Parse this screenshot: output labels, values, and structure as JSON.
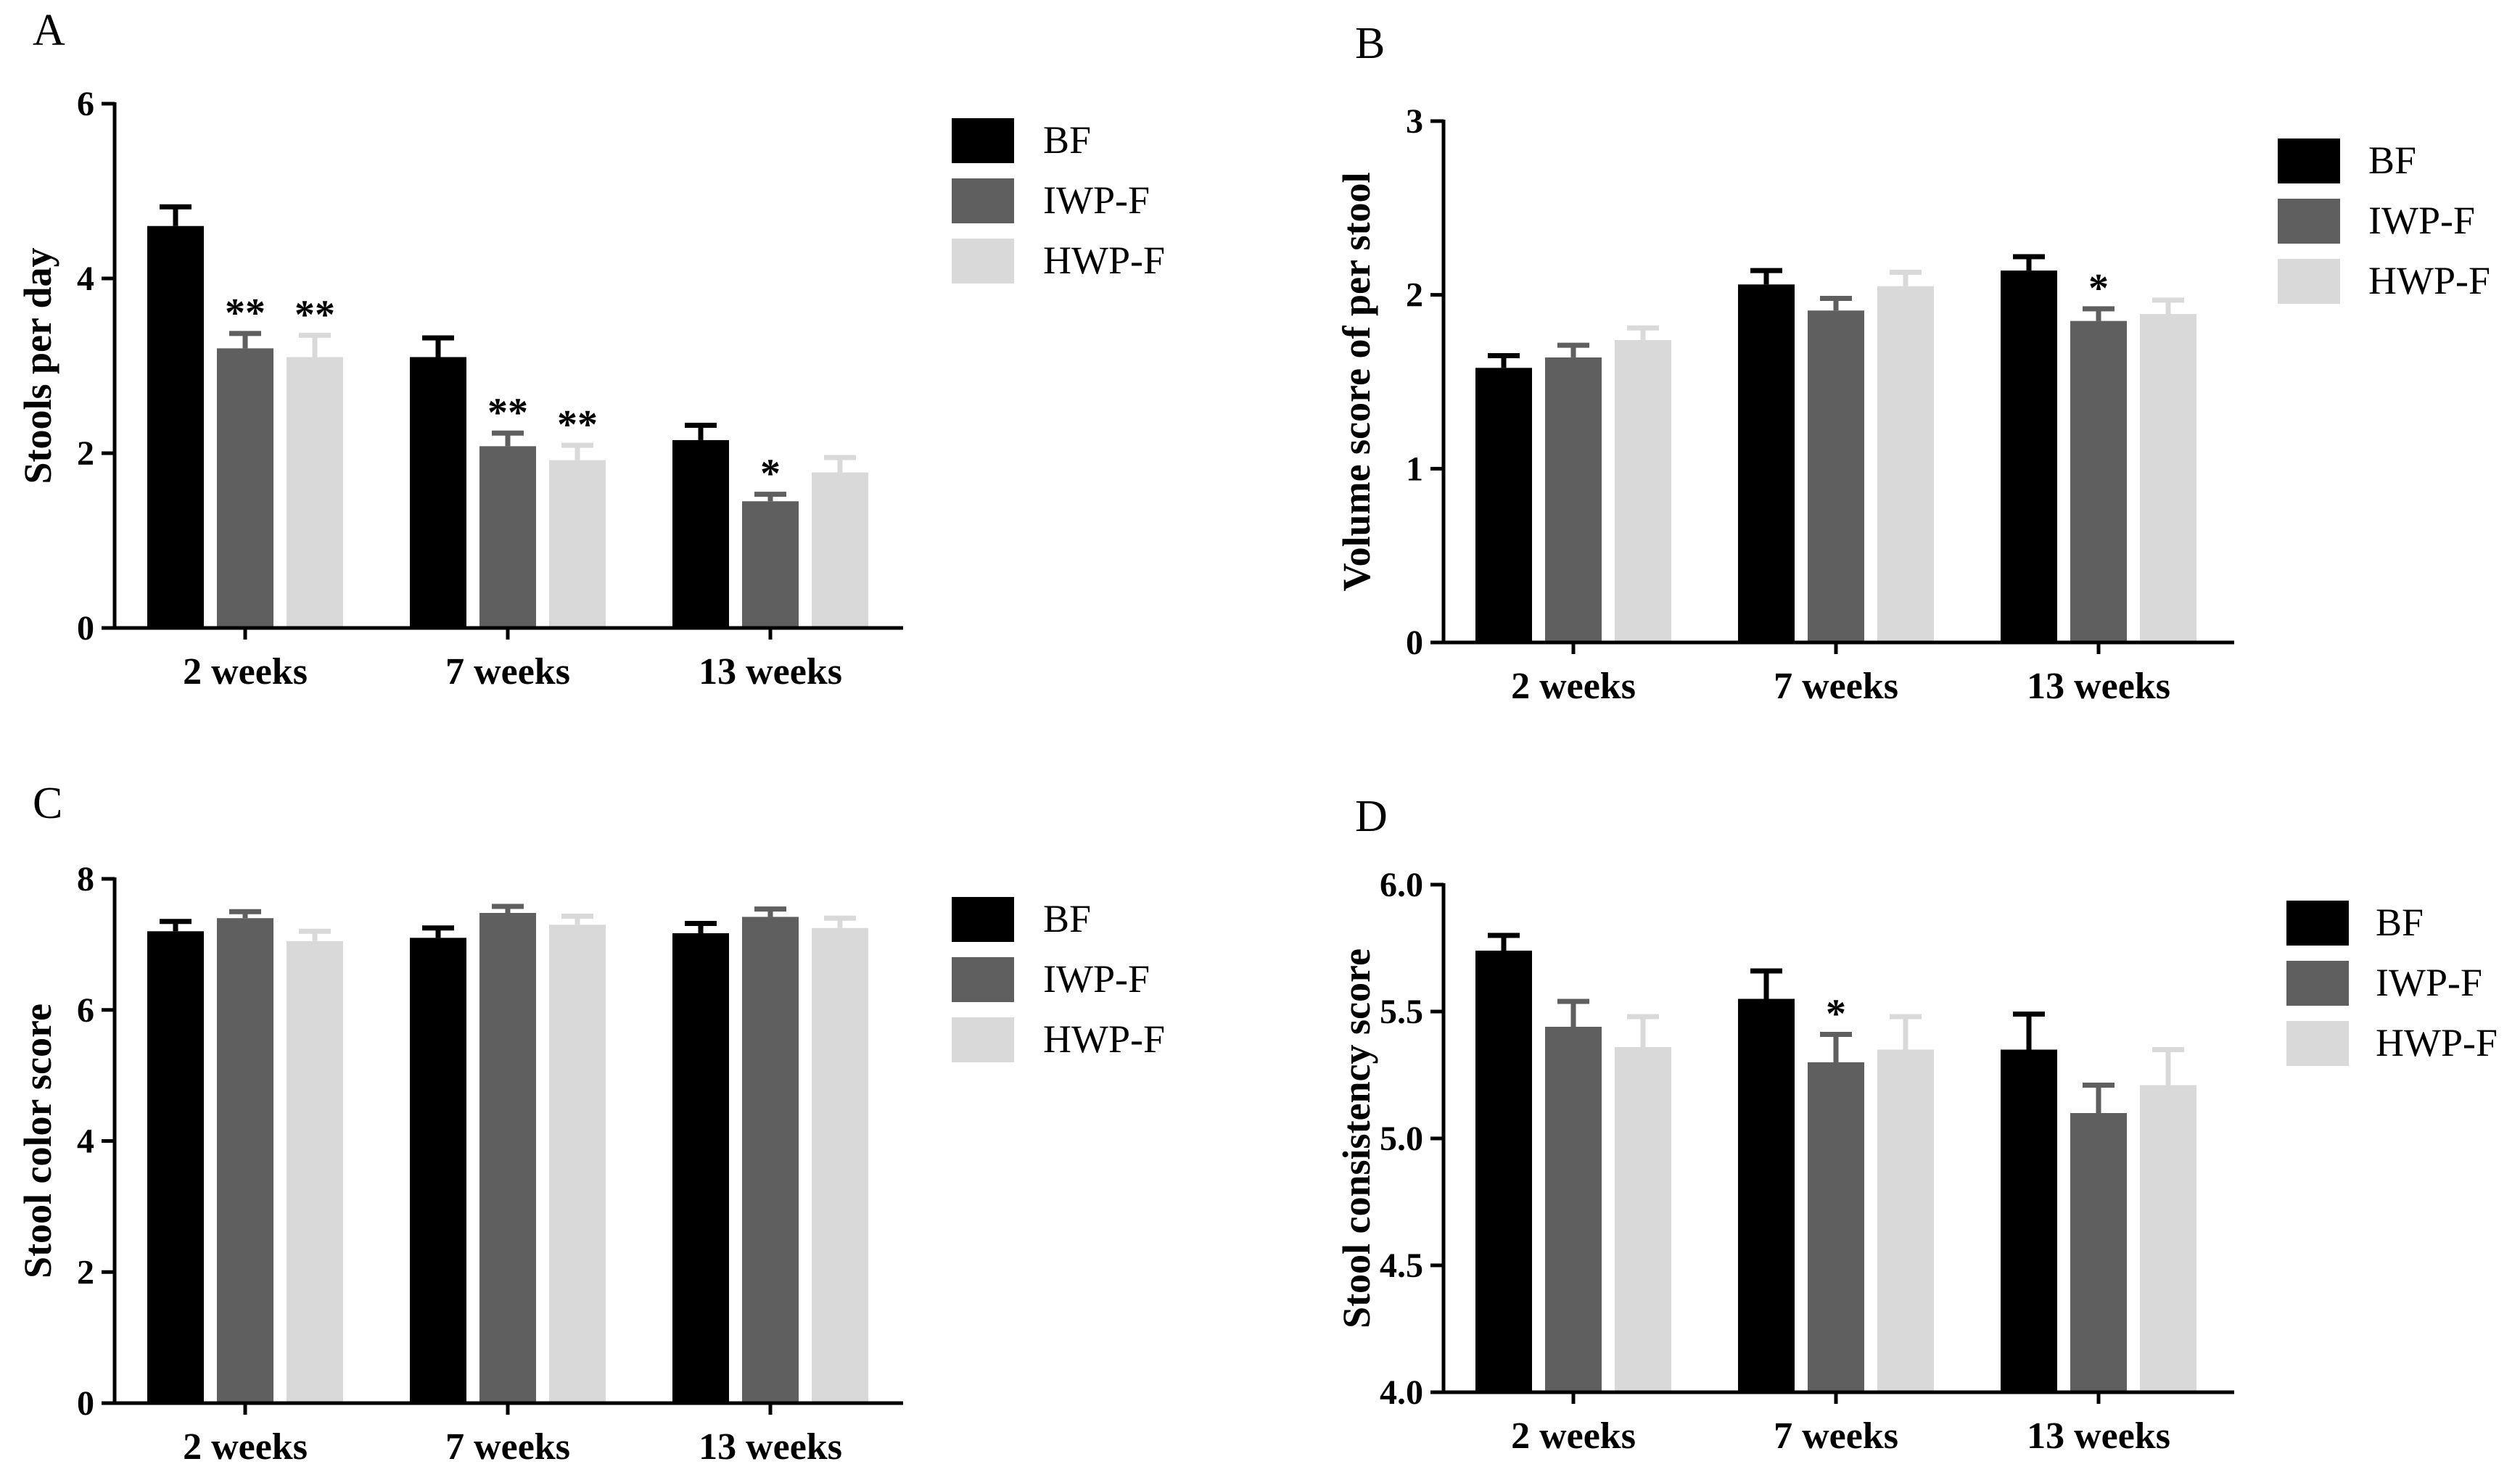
{
  "colors": {
    "BF": "#000000",
    "IWP-F": "#5f5f5f",
    "HWP-F": "#d9d9d9",
    "axis": "#000000"
  },
  "legend": [
    "BF",
    "IWP-F",
    "HWP-F"
  ],
  "chart_data": [
    {
      "panel": "A",
      "type": "bar",
      "title": "",
      "xlabel": "",
      "ylabel": "Stools per day",
      "ylim": [
        0,
        6
      ],
      "yticks": [
        "0",
        "2",
        "4",
        "6"
      ],
      "categories": [
        "2 weeks",
        "7 weeks",
        "13 weeks"
      ],
      "series": [
        {
          "name": "BF",
          "values": [
            4.6,
            3.1,
            2.15
          ],
          "errors": [
            0.22,
            0.22,
            0.17
          ],
          "sig": [
            "",
            "",
            ""
          ]
        },
        {
          "name": "IWP-F",
          "values": [
            3.2,
            2.08,
            1.45
          ],
          "errors": [
            0.17,
            0.15,
            0.08
          ],
          "sig": [
            "**",
            "**",
            "*"
          ]
        },
        {
          "name": "HWP-F",
          "values": [
            3.1,
            1.92,
            1.78
          ],
          "errors": [
            0.25,
            0.17,
            0.17
          ],
          "sig": [
            "**",
            "**",
            ""
          ]
        }
      ]
    },
    {
      "panel": "B",
      "type": "bar",
      "title": "",
      "xlabel": "",
      "ylabel": "Volume score of per stool",
      "ylim": [
        0,
        3
      ],
      "yticks": [
        "0",
        "1",
        "2",
        "3"
      ],
      "categories": [
        "2 weeks",
        "7 weeks",
        "13 weeks"
      ],
      "series": [
        {
          "name": "BF",
          "values": [
            1.58,
            2.06,
            2.14
          ],
          "errors": [
            0.07,
            0.08,
            0.08
          ],
          "sig": [
            "",
            "",
            ""
          ]
        },
        {
          "name": "IWP-F",
          "values": [
            1.64,
            1.91,
            1.85
          ],
          "errors": [
            0.07,
            0.07,
            0.07
          ],
          "sig": [
            "",
            "",
            "*"
          ]
        },
        {
          "name": "HWP-F",
          "values": [
            1.74,
            2.05,
            1.89
          ],
          "errors": [
            0.07,
            0.08,
            0.08
          ],
          "sig": [
            "",
            "",
            ""
          ]
        }
      ]
    },
    {
      "panel": "C",
      "type": "bar",
      "title": "",
      "xlabel": "",
      "ylabel": "Stool color score",
      "ylim": [
        0,
        8
      ],
      "yticks": [
        "0",
        "2",
        "4",
        "6",
        "8"
      ],
      "categories": [
        "2 weeks",
        "7 weeks",
        "13 weeks"
      ],
      "series": [
        {
          "name": "BF",
          "values": [
            7.2,
            7.1,
            7.17
          ],
          "errors": [
            0.15,
            0.15,
            0.15
          ],
          "sig": [
            "",
            "",
            ""
          ]
        },
        {
          "name": "IWP-F",
          "values": [
            7.4,
            7.48,
            7.42
          ],
          "errors": [
            0.1,
            0.1,
            0.12
          ],
          "sig": [
            "",
            "",
            ""
          ]
        },
        {
          "name": "HWP-F",
          "values": [
            7.05,
            7.3,
            7.25
          ],
          "errors": [
            0.15,
            0.13,
            0.15
          ],
          "sig": [
            "",
            "",
            ""
          ]
        }
      ]
    },
    {
      "panel": "D",
      "type": "bar",
      "title": "",
      "xlabel": "",
      "ylabel": "Stool consistency score",
      "ylim": [
        4.0,
        6.0
      ],
      "yticks": [
        "4.0",
        "4.5",
        "5.0",
        "5.5",
        "6.0"
      ],
      "categories": [
        "2 weeks",
        "7 weeks",
        "13 weeks"
      ],
      "series": [
        {
          "name": "BF",
          "values": [
            5.74,
            5.55,
            5.35
          ],
          "errors": [
            0.06,
            0.11,
            0.14
          ],
          "sig": [
            "",
            "",
            ""
          ]
        },
        {
          "name": "IWP-F",
          "values": [
            5.44,
            5.3,
            5.1
          ],
          "errors": [
            0.1,
            0.11,
            0.11
          ],
          "sig": [
            "",
            "*",
            ""
          ]
        },
        {
          "name": "HWP-F",
          "values": [
            5.36,
            5.35,
            5.21
          ],
          "errors": [
            0.12,
            0.13,
            0.14
          ],
          "sig": [
            "",
            "",
            ""
          ]
        }
      ]
    }
  ]
}
